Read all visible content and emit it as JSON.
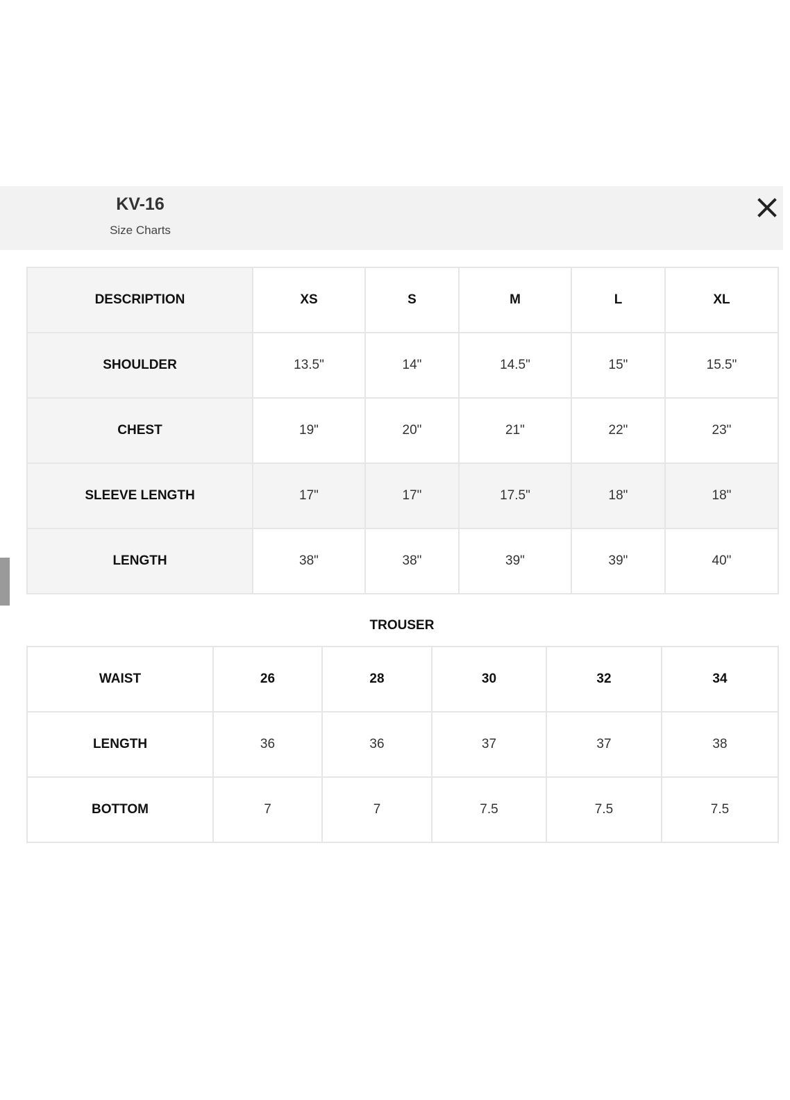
{
  "header": {
    "title": "KV-16",
    "subtitle": "Size Charts",
    "close_icon": "close-icon"
  },
  "top_table": {
    "columns": [
      "DESCRIPTION",
      "XS",
      "S",
      "M",
      "L",
      "XL"
    ],
    "rows": [
      {
        "label": "SHOULDER",
        "values": [
          "13.5\"",
          "14\"",
          "14.5\"",
          "15\"",
          "15.5\""
        ]
      },
      {
        "label": "CHEST",
        "values": [
          "19\"",
          "20\"",
          "21\"",
          "22\"",
          "23\""
        ]
      },
      {
        "label": "SLEEVE LENGTH",
        "values": [
          "17\"",
          "17\"",
          "17.5\"",
          "18\"",
          "18\""
        ]
      },
      {
        "label": "LENGTH",
        "values": [
          "38\"",
          "38\"",
          "39\"",
          "39\"",
          "40\""
        ]
      }
    ]
  },
  "trouser": {
    "title": "TROUSER",
    "rows": [
      {
        "label": "WAIST",
        "values": [
          "26",
          "28",
          "30",
          "32",
          "34"
        ]
      },
      {
        "label": "LENGTH",
        "values": [
          "36",
          "36",
          "37",
          "37",
          "38"
        ]
      },
      {
        "label": "BOTTOM",
        "values": [
          "7",
          "7",
          "7.5",
          "7.5",
          "7.5"
        ]
      }
    ]
  }
}
